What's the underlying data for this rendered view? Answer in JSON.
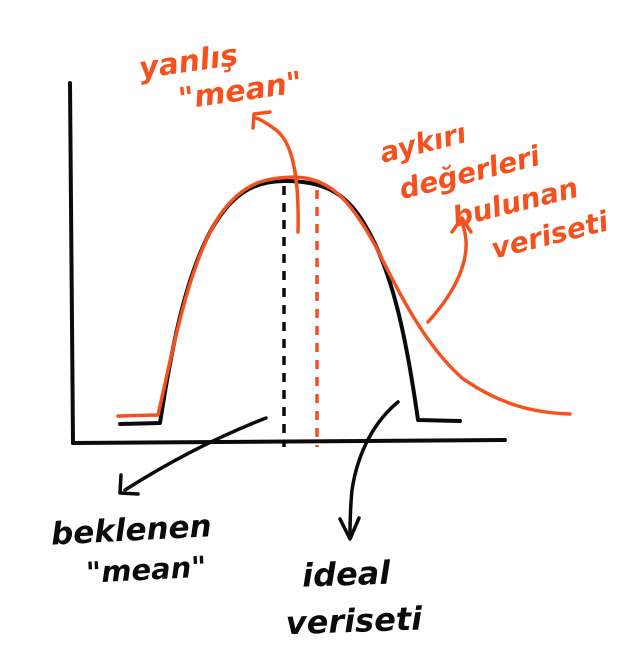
{
  "colors": {
    "background": "#ffffff",
    "ink_black": "#0b0b0b",
    "ink_orange": "#f4511e"
  },
  "labels": {
    "wrong_mean": [
      "yanlış",
      "\"mean\""
    ],
    "outlier_dataset": [
      "aykırı",
      "değerleri",
      "bulunan",
      "veriseti"
    ],
    "expected_mean": [
      "beklenen",
      "\"mean\""
    ],
    "ideal_dataset": [
      "ideal",
      "veriseti"
    ]
  }
}
